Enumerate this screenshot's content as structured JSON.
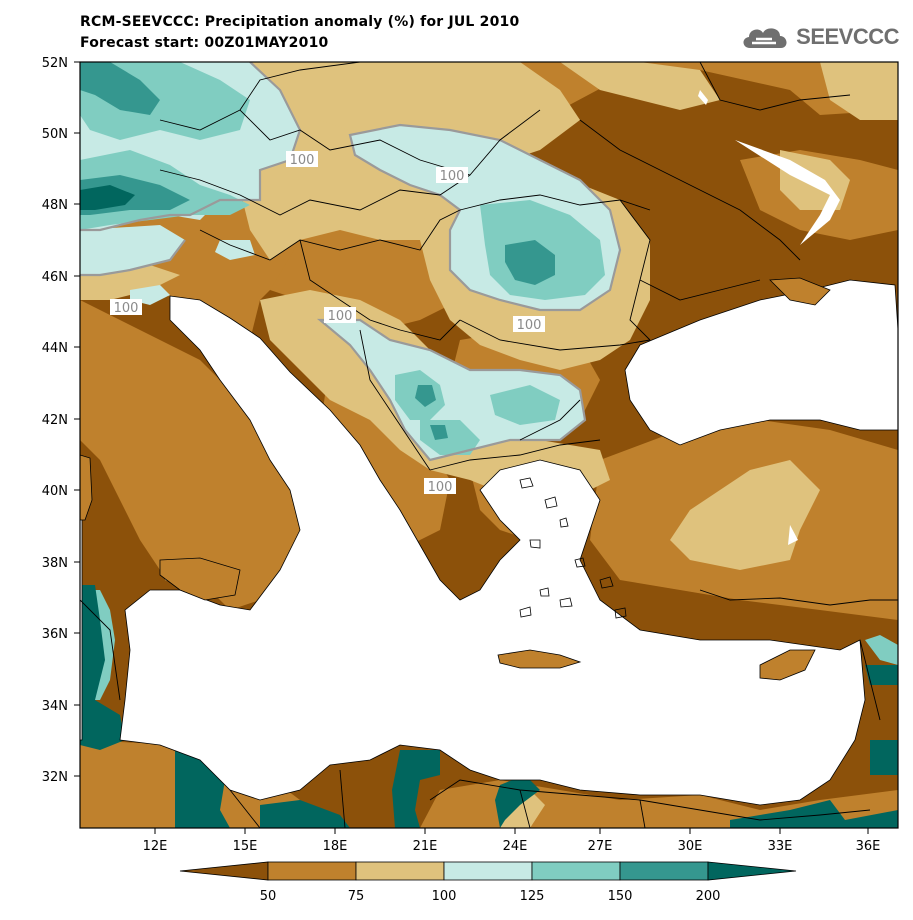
{
  "header": {
    "title": "RCM-SEEVCCC: Precipitation anomaly (%) for JUL 2010",
    "subtitle": "Forecast start: 00Z01MAY2010",
    "logo_text": "SEEVCCC"
  },
  "map": {
    "lon_range": [
      9.5,
      36.8
    ],
    "lat_range": [
      30.6,
      52.0
    ],
    "lat_ticks": [
      "52N",
      "50N",
      "48N",
      "46N",
      "44N",
      "42N",
      "40N",
      "38N",
      "36N",
      "34N",
      "32N"
    ],
    "lon_ticks": [
      "12E",
      "15E",
      "18E",
      "21E",
      "24E",
      "27E",
      "30E",
      "33E",
      "36E"
    ],
    "contour_labels": [
      "100",
      "100",
      "100",
      "100",
      "100",
      "100"
    ]
  },
  "colorbar": {
    "labels": [
      "50",
      "75",
      "100",
      "125",
      "150",
      "200"
    ],
    "colors": [
      "#8c510a",
      "#bf812d",
      "#dfc27d",
      "#c7eae5",
      "#80cdc1",
      "#35978f",
      "#01665e"
    ]
  },
  "colors": {
    "very_dry": "#8c510a",
    "dry": "#bf812d",
    "slightly_dry": "#dfc27d",
    "slightly_wet": "#c7eae5",
    "wet": "#80cdc1",
    "very_wet": "#35978f",
    "extreme_wet": "#01665e"
  }
}
